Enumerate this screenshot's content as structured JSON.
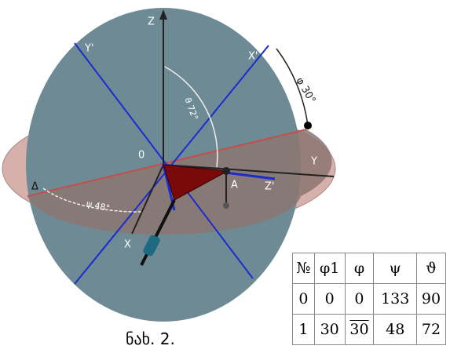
{
  "labels": {
    "z": "Z",
    "y_prime": "Y'",
    "x_prime": "X'",
    "phi": "φ 30°",
    "theta": "ϑ 72°",
    "origin": "0",
    "y": "Y",
    "a": "A",
    "z_prime": "Z'",
    "delta": "Δ",
    "psi": "ψ 48°",
    "x": "X"
  },
  "table": {
    "header": [
      "№",
      "φ1",
      "φ",
      "ψ",
      "ϑ"
    ],
    "rows": [
      [
        "0",
        "0",
        "0",
        "133",
        "90"
      ],
      [
        "1",
        "30",
        "30",
        "48",
        "72"
      ]
    ]
  },
  "caption": "ნახ. 2."
}
